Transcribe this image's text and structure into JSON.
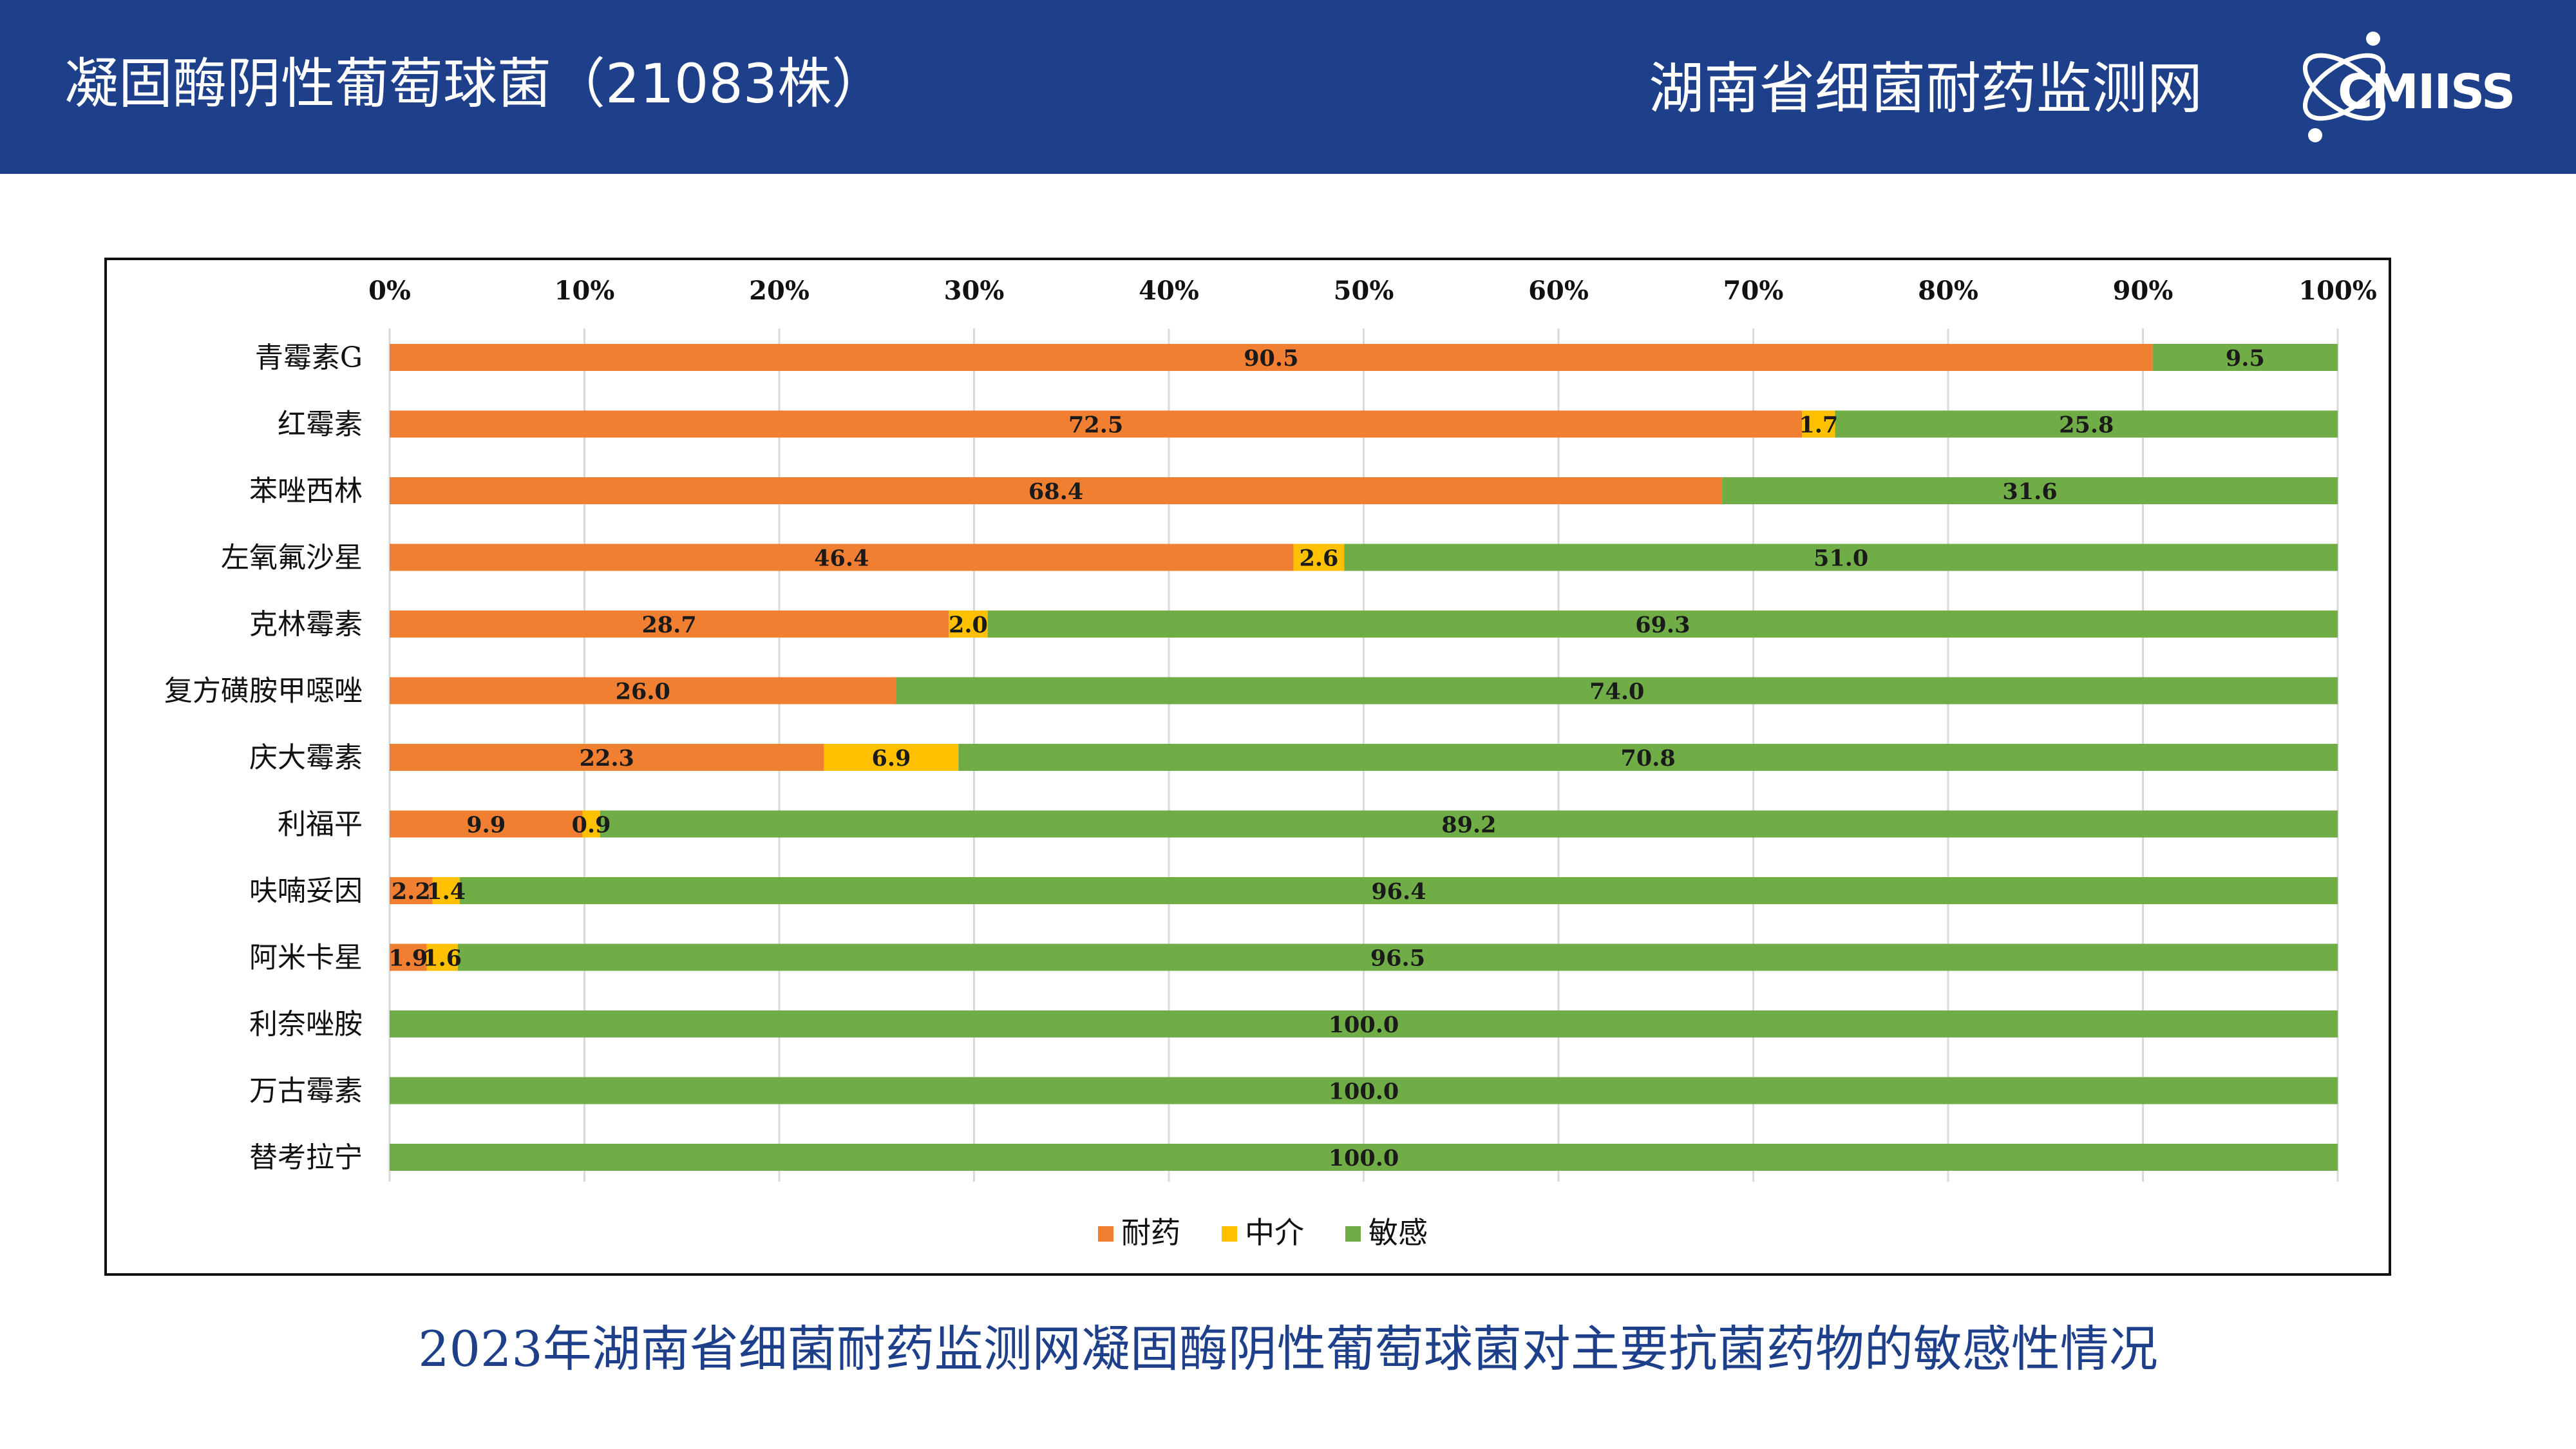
{
  "header": {
    "title": "凝固酶阴性葡萄球菌（21083株）",
    "org": "湖南省细菌耐药监测网",
    "logo_text": "CMIISS",
    "logo_icon": "atom-orbit-icon",
    "background_color": "#1e3f8a"
  },
  "caption": "2023年湖南省细菌耐药监测网凝固酶阴性葡萄球菌对主要抗菌药物的敏感性情况",
  "chart_data": {
    "type": "bar",
    "orientation": "horizontal",
    "stacked": "percent",
    "xlim": [
      0,
      100
    ],
    "x_ticks": [
      "0%",
      "10%",
      "20%",
      "30%",
      "40%",
      "50%",
      "60%",
      "70%",
      "80%",
      "90%",
      "100%"
    ],
    "x_axis_position": "top",
    "grid": true,
    "legend_position": "bottom",
    "categories": [
      "青霉素G",
      "红霉素",
      "苯唑西林",
      "左氧氟沙星",
      "克林霉素",
      "复方磺胺甲噁唑",
      "庆大霉素",
      "利福平",
      "呋喃妥因",
      "阿米卡星",
      "利奈唑胺",
      "万古霉素",
      "替考拉宁"
    ],
    "series": [
      {
        "name": "耐药",
        "color": "#f07f32",
        "values": [
          90.5,
          72.5,
          68.4,
          46.4,
          28.7,
          26.0,
          22.3,
          9.9,
          2.2,
          1.9,
          null,
          null,
          null
        ],
        "labels": [
          "90.5",
          "72.5",
          "68.4",
          "46.4",
          "28.7",
          "26.0",
          "22.3",
          "9.9",
          "2.2",
          "1.9",
          "",
          "",
          ""
        ]
      },
      {
        "name": "中介",
        "color": "#ffc000",
        "values": [
          null,
          1.7,
          null,
          2.6,
          2.0,
          null,
          6.9,
          0.9,
          1.4,
          1.6,
          null,
          null,
          null
        ],
        "labels": [
          "",
          "1.7",
          "",
          "2.6",
          "2.0",
          "",
          "6.9",
          "0.9",
          "1.4",
          "1.6",
          "",
          "",
          ""
        ]
      },
      {
        "name": "敏感",
        "color": "#70ad47",
        "values": [
          9.5,
          25.8,
          31.6,
          51.0,
          69.3,
          74.0,
          70.8,
          89.2,
          96.4,
          96.5,
          100.0,
          100.0,
          100.0
        ],
        "labels": [
          "9.5",
          "25.8",
          "31.6",
          "51.0",
          "69.3",
          "74.0",
          "70.8",
          "89.2",
          "96.4",
          "96.5",
          "100.0",
          "100.0",
          "100.0"
        ]
      }
    ]
  }
}
